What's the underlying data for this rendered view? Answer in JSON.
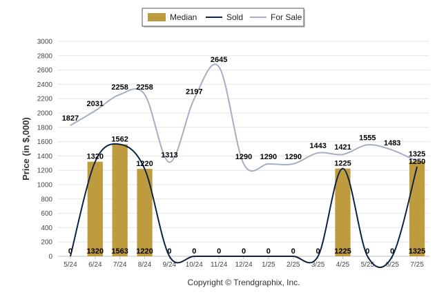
{
  "chart_data": {
    "type": "bar",
    "title": "",
    "xlabel": "",
    "ylabel": "Price (in $,000)",
    "ylim": [
      0,
      3000
    ],
    "y_ticks": [
      0,
      200,
      400,
      600,
      800,
      1000,
      1200,
      1400,
      1600,
      1800,
      2000,
      2200,
      2400,
      2600,
      2800,
      3000
    ],
    "grid": true,
    "legend_position": "top-center",
    "categories": [
      "5/24",
      "6/24",
      "7/24",
      "8/24",
      "9/24",
      "10/24",
      "11/24",
      "12/24",
      "1/25",
      "2/25",
      "3/25",
      "4/25",
      "5/25",
      "6/25",
      "7/25"
    ],
    "series": [
      {
        "name": "Median",
        "type": "bar",
        "color": "#bf9b3f",
        "values": [
          0,
          1320,
          1563,
          1220,
          0,
          0,
          0,
          0,
          0,
          0,
          0,
          1225,
          0,
          0,
          1325
        ]
      },
      {
        "name": "Sold",
        "type": "line",
        "color": "#0d2244",
        "values": [
          0,
          1320,
          1562,
          1220,
          0,
          0,
          0,
          0,
          0,
          0,
          0,
          1225,
          0,
          0,
          1250
        ]
      },
      {
        "name": "For Sale",
        "type": "line",
        "color": "#a7adc2",
        "values": [
          1827,
          2031,
          2258,
          2258,
          1313,
          2197,
          2645,
          1290,
          1290,
          1290,
          1443,
          1421,
          1555,
          1483,
          1325
        ]
      }
    ],
    "footer": "Copyright © Trendgraphix, Inc."
  }
}
